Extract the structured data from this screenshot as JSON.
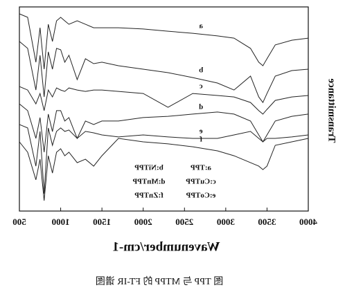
{
  "chart_data": {
    "type": "line",
    "x_label": "Wavenumber/cm-1",
    "y_label": "Transmittance",
    "caption": "图 TPP 与 MTPP 的 FT-IR 谱图",
    "mirrored": true,
    "x": [
      500,
      600,
      700,
      750,
      800,
      850,
      900,
      950,
      1000,
      1050,
      1100,
      1200,
      1300,
      1400,
      1500,
      1700,
      2000,
      2300,
      2600,
      2900,
      3100,
      3300,
      3400,
      3450,
      3500,
      3600,
      3800,
      4000
    ],
    "xlim": [
      500,
      4000
    ],
    "xticks": [
      500,
      1000,
      1500,
      2000,
      2500,
      3000,
      3500,
      4000
    ],
    "ylim": [
      0,
      100
    ],
    "series": [
      {
        "label": "a",
        "name": "a:TPP",
        "color": "#222",
        "values": [
          96.6,
          94.9,
          72.9,
          89.8,
          69.5,
          91.5,
          83.1,
          93.2,
          94.9,
          93.2,
          91.5,
          93.2,
          91.5,
          89.8,
          89.8,
          89.8,
          89.2,
          88.1,
          87.1,
          85.8,
          84.7,
          79.7,
          72.9,
          71.2,
          74.6,
          81.4,
          83.7,
          84.7
        ]
      },
      {
        "label": "b",
        "name": "b:NiTPP",
        "color": "#222",
        "values": [
          83.1,
          79.7,
          59.3,
          76.3,
          55.9,
          78,
          69.5,
          79.7,
          79,
          72.9,
          76.3,
          64.4,
          74.6,
          72.2,
          72.9,
          71.2,
          69.5,
          67.8,
          65.4,
          62.7,
          59.3,
          66.1,
          55.9,
          53.2,
          57.6,
          66.1,
          68.8,
          69.5
        ]
      },
      {
        "label": "c",
        "name": "c:CuTPP",
        "color": "#222",
        "values": [
          61,
          59.3,
          52.5,
          57.6,
          49.2,
          59.3,
          55.9,
          60.3,
          59.3,
          58.6,
          60.3,
          59.3,
          58.6,
          59.3,
          59.3,
          58.6,
          57.6,
          50.8,
          57.6,
          56.6,
          55.9,
          53.2,
          49.2,
          47.5,
          49.8,
          54.2,
          55.9,
          56.6
        ]
      },
      {
        "label": "d",
        "name": "d:MnTPP",
        "color": "#222",
        "values": [
          52.5,
          49.2,
          35.6,
          45.8,
          28.8,
          47.5,
          38.9,
          49.2,
          49.2,
          44.1,
          45.8,
          35.6,
          44.1,
          42.4,
          44.1,
          44.1,
          45.8,
          46.4,
          47.5,
          48.5,
          47.5,
          44.1,
          37.3,
          33.9,
          37.3,
          44.1,
          46.4,
          47.5
        ]
      },
      {
        "label": "e",
        "name": "e:CoTPP",
        "color": "#222",
        "values": [
          42.4,
          40.7,
          22,
          39,
          8.5,
          40.7,
          32.2,
          39,
          40.7,
          39,
          39.7,
          35.6,
          39,
          38.3,
          37.3,
          36.3,
          37.3,
          36.3,
          35.6,
          35.6,
          37.3,
          39,
          35.6,
          33.9,
          35.6,
          35.6,
          36.3,
          37.3
        ]
      },
      {
        "label": "f",
        "name": "f:ZnTPP",
        "color": "#222",
        "values": [
          33.9,
          28.8,
          15.3,
          25.4,
          5.1,
          27.1,
          18.6,
          28.8,
          30.5,
          27.1,
          28.8,
          23.7,
          25.4,
          22,
          27.1,
          35.6,
          33.9,
          32.9,
          31.5,
          29.5,
          27.1,
          23.7,
          22,
          20.3,
          22,
          32.2,
          33.9,
          35.6
        ]
      }
    ]
  }
}
